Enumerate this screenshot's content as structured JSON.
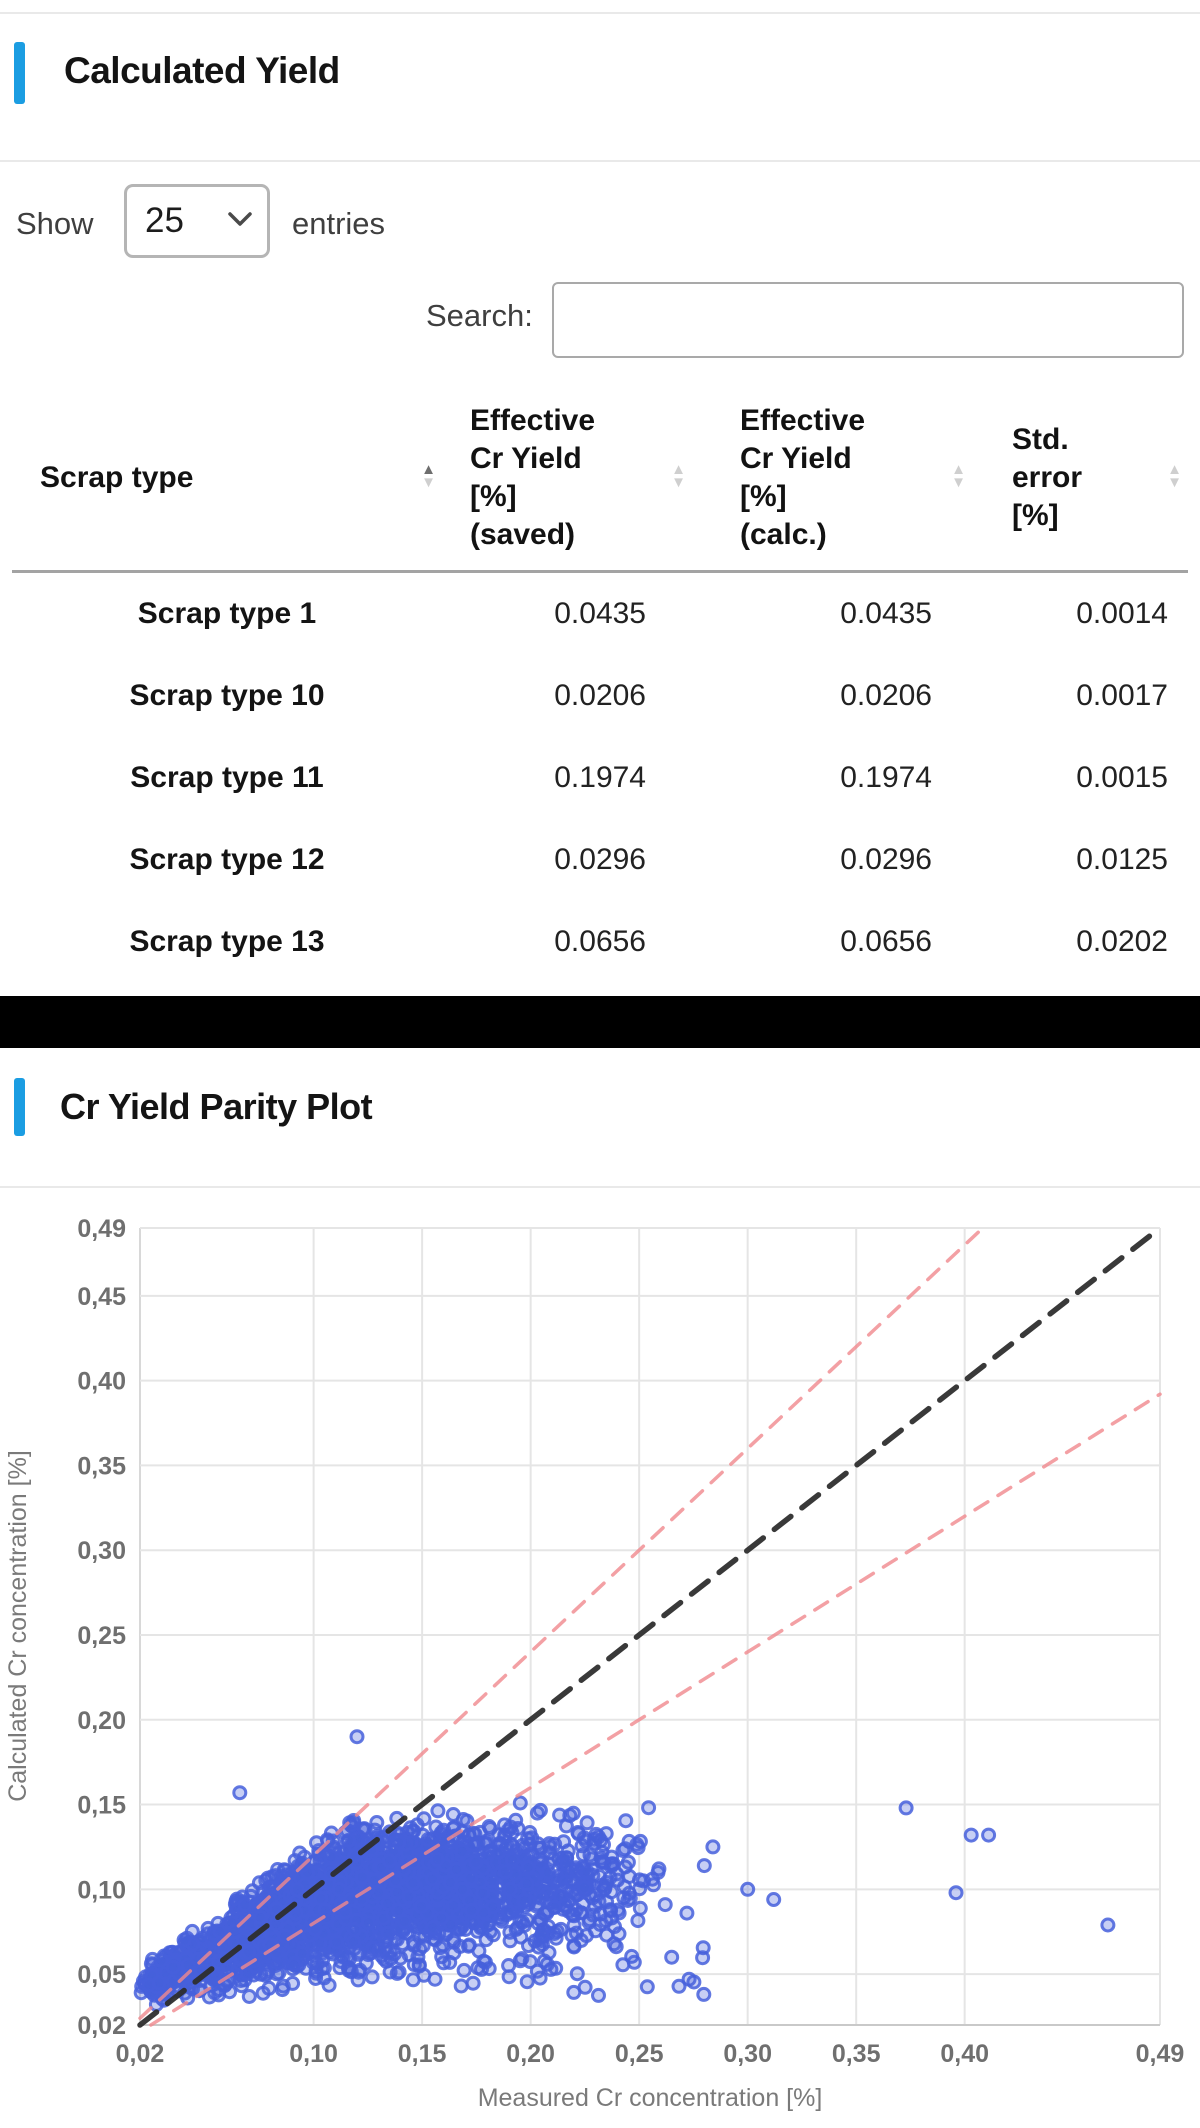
{
  "accent_color": "#1b9de2",
  "section_calculated_yield": {
    "title": "Calculated Yield",
    "show_label": "Show",
    "entries_value": "25",
    "entries_label": "entries",
    "search_label": "Search:",
    "search_value": "",
    "table": {
      "columns": [
        {
          "label": "Scrap type",
          "sort": "asc"
        },
        {
          "label": "Effective\nCr Yield\n[%]\n(saved)",
          "sort": "none"
        },
        {
          "label": "Effective\nCr Yield\n[%]\n(calc.)",
          "sort": "none"
        },
        {
          "label": "Std.\nerror\n[%]",
          "sort": "none"
        }
      ],
      "rows": [
        {
          "scrap_type": "Scrap type 1",
          "saved": "0.0435",
          "calc": "0.0435",
          "std_error": "0.0014"
        },
        {
          "scrap_type": "Scrap type 10",
          "saved": "0.0206",
          "calc": "0.0206",
          "std_error": "0.0017"
        },
        {
          "scrap_type": "Scrap type 11",
          "saved": "0.1974",
          "calc": "0.1974",
          "std_error": "0.0015"
        },
        {
          "scrap_type": "Scrap type 12",
          "saved": "0.0296",
          "calc": "0.0296",
          "std_error": "0.0125"
        },
        {
          "scrap_type": "Scrap type 13",
          "saved": "0.0656",
          "calc": "0.0656",
          "std_error": "0.0202"
        }
      ]
    }
  },
  "section_parity_plot": {
    "title": "Cr Yield Parity Plot"
  },
  "chart_data": {
    "type": "scatter",
    "title": "Cr Yield Parity Plot",
    "xlabel": "Measured Cr concentration [%]",
    "ylabel": "Calculated Cr concentration [%]",
    "xlim": [
      0.02,
      0.49
    ],
    "ylim": [
      0.02,
      0.49
    ],
    "grid": true,
    "x_ticks": [
      {
        "v": 0.02,
        "label": "0,02"
      },
      {
        "v": 0.1,
        "label": "0,10"
      },
      {
        "v": 0.15,
        "label": "0,15"
      },
      {
        "v": 0.2,
        "label": "0,20"
      },
      {
        "v": 0.25,
        "label": "0,25"
      },
      {
        "v": 0.3,
        "label": "0,30"
      },
      {
        "v": 0.35,
        "label": "0,35"
      },
      {
        "v": 0.4,
        "label": "0,40"
      },
      {
        "v": 0.49,
        "label": "0,49"
      }
    ],
    "y_ticks": [
      {
        "v": 0.02,
        "label": "0,02"
      },
      {
        "v": 0.05,
        "label": "0,05"
      },
      {
        "v": 0.1,
        "label": "0,10"
      },
      {
        "v": 0.15,
        "label": "0,15"
      },
      {
        "v": 0.2,
        "label": "0,20"
      },
      {
        "v": 0.25,
        "label": "0,25"
      },
      {
        "v": 0.3,
        "label": "0,30"
      },
      {
        "v": 0.35,
        "label": "0,35"
      },
      {
        "v": 0.4,
        "label": "0,40"
      },
      {
        "v": 0.45,
        "label": "0,45"
      },
      {
        "v": 0.49,
        "label": "0,49"
      }
    ],
    "marker": {
      "color": "#4660DC",
      "radius": 6,
      "stroke_width": 3,
      "fill_opacity": 0.3
    },
    "reference_lines": [
      {
        "name": "parity-line",
        "slope": 1.0,
        "color": "#2e2e2e",
        "width": 5.5,
        "dash": "21 14",
        "opacity": 0.95
      },
      {
        "name": "upper-bound-line",
        "slope": 1.2,
        "color": "#f0888d",
        "width": 3.5,
        "dash": "15 12",
        "opacity": 0.8
      },
      {
        "name": "lower-bound-line",
        "slope": 0.8,
        "color": "#f0888d",
        "width": 3.5,
        "dash": "15 12",
        "opacity": 0.8
      }
    ],
    "point_cloud": {
      "seed": 42,
      "description": "Dense fan of ~2900 (measured, calculated) Cr concentration pairs rising from (0.02,0.03) to a plateau near calculated=0.155 over measured 0.12-0.22, thinning out to measured=0.26",
      "n_main": 2900,
      "x_min": 0.02,
      "x_span": 0.24,
      "x_shape": 1.3,
      "bottom_intercept": 0.026,
      "bottom_slope": 0.05,
      "top_intercept": 0.055,
      "top_slope": 1.0,
      "top_cap": 0.155,
      "w_shape": 0.85,
      "jitter": 0.006,
      "n_stragglers": 26,
      "straggler_x": [
        0.15,
        0.28
      ],
      "straggler_y": [
        0.035,
        0.08
      ]
    },
    "outlier_points": [
      [
        0.066,
        0.157
      ],
      [
        0.12,
        0.19
      ],
      [
        0.22,
        0.066
      ],
      [
        0.235,
        0.073
      ],
      [
        0.252,
        0.105
      ],
      [
        0.262,
        0.091
      ],
      [
        0.272,
        0.086
      ],
      [
        0.28,
        0.114
      ],
      [
        0.284,
        0.125
      ],
      [
        0.3,
        0.1
      ],
      [
        0.312,
        0.094
      ],
      [
        0.373,
        0.148
      ],
      [
        0.396,
        0.098
      ],
      [
        0.403,
        0.132
      ],
      [
        0.411,
        0.132
      ],
      [
        0.466,
        0.079
      ]
    ]
  }
}
